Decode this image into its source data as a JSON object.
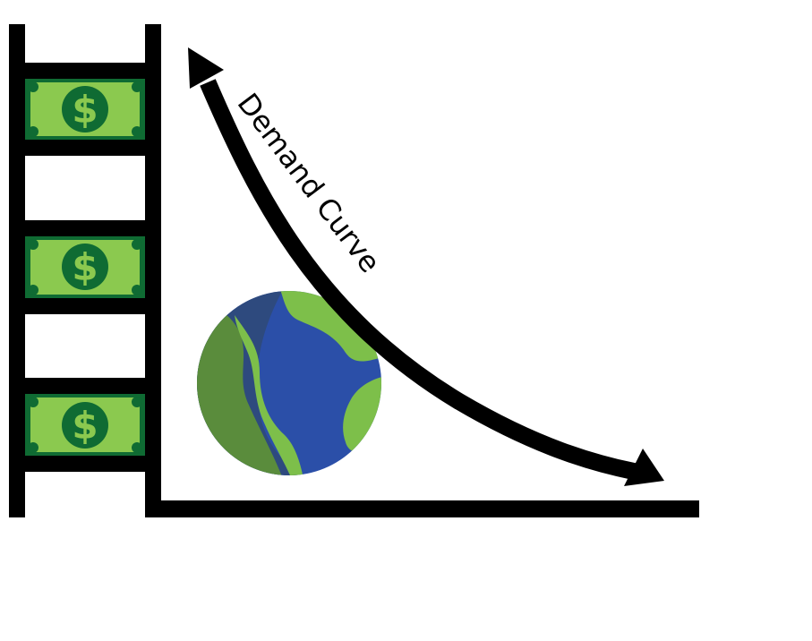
{
  "curve": {
    "label": "Demand Curve"
  },
  "bills": {
    "count": 3,
    "symbol": "$"
  },
  "colors": {
    "axis": "#000000",
    "bill_green": "#8bc94f",
    "bill_dark": "#0f6b33",
    "land_light": "#7dbf4a",
    "land_shadow": "#5a8c3c",
    "ocean": "#2b4fa8",
    "ocean_shadow": "#2e4a7e"
  },
  "icons": [
    "dollar-bill-icon",
    "earth-globe-icon",
    "double-headed-arrow-icon"
  ]
}
